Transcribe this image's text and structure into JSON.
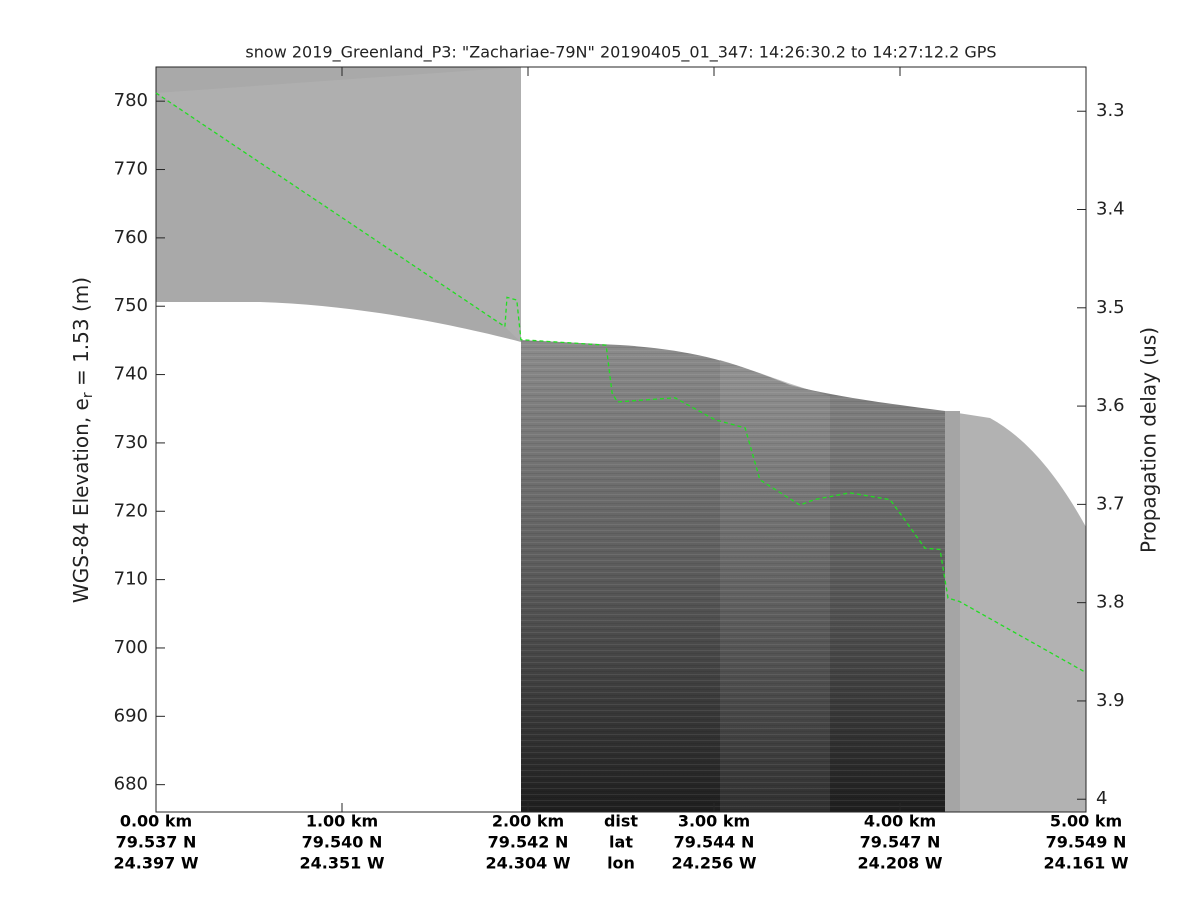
{
  "chart_data": {
    "type": "line",
    "title": "snow 2019_Greenland_P3: \"Zachariae-79N\"  20190405_01_347: 14:26:30.2 to 14:27:12.2 GPS",
    "ylabel": [
      "WGS-84 Elevation, e",
      "r",
      " = 1.53 (m)"
    ],
    "y2label": "Propagation delay (us)",
    "xlim": [
      0,
      5
    ],
    "ylim": [
      676,
      785
    ],
    "y2lim": [
      4.013,
      3.255
    ],
    "yticks": [
      680,
      690,
      700,
      710,
      720,
      730,
      740,
      750,
      760,
      770,
      780
    ],
    "y2ticks": [
      3.3,
      3.4,
      3.5,
      3.6,
      3.7,
      3.8,
      3.9,
      4
    ],
    "xticks": [
      {
        "value": 0,
        "label": "0.00 km"
      },
      {
        "value": 1,
        "label": "1.00 km"
      },
      {
        "value": 2,
        "label": "2.00 km"
      },
      {
        "value": 3,
        "label": "3.00 km"
      },
      {
        "value": 4,
        "label": "4.00 km"
      },
      {
        "value": 5,
        "label": "5.00 km"
      }
    ],
    "xtick_lat": [
      "79.537 N",
      "79.540 N",
      "79.542 N",
      "79.544 N",
      "79.547 N",
      "79.549 N"
    ],
    "xtick_lon": [
      "24.397 W",
      "24.351 W",
      "24.304 W",
      "24.256 W",
      "24.208 W",
      "24.161 W"
    ],
    "row_labels": [
      "dist",
      "lat",
      "lon"
    ],
    "series": [
      {
        "color": "#22dd22",
        "x": [
          0,
          1.876,
          1.887,
          1.94,
          1.962,
          2.42,
          2.452,
          2.48,
          2.79,
          3.005,
          3.167,
          3.247,
          3.462,
          3.54,
          3.73,
          3.946,
          4.027,
          4.134,
          4.215,
          4.258,
          4.32,
          5.0
        ],
        "values": [
          781.2,
          747.0,
          751.3,
          750.9,
          745.1,
          744.3,
          737.3,
          736.0,
          736.6,
          733.4,
          732.2,
          724.6,
          720.9,
          721.7,
          722.7,
          721.7,
          718.7,
          714.6,
          714.4,
          707.3,
          706.8,
          696.4
        ]
      }
    ]
  }
}
